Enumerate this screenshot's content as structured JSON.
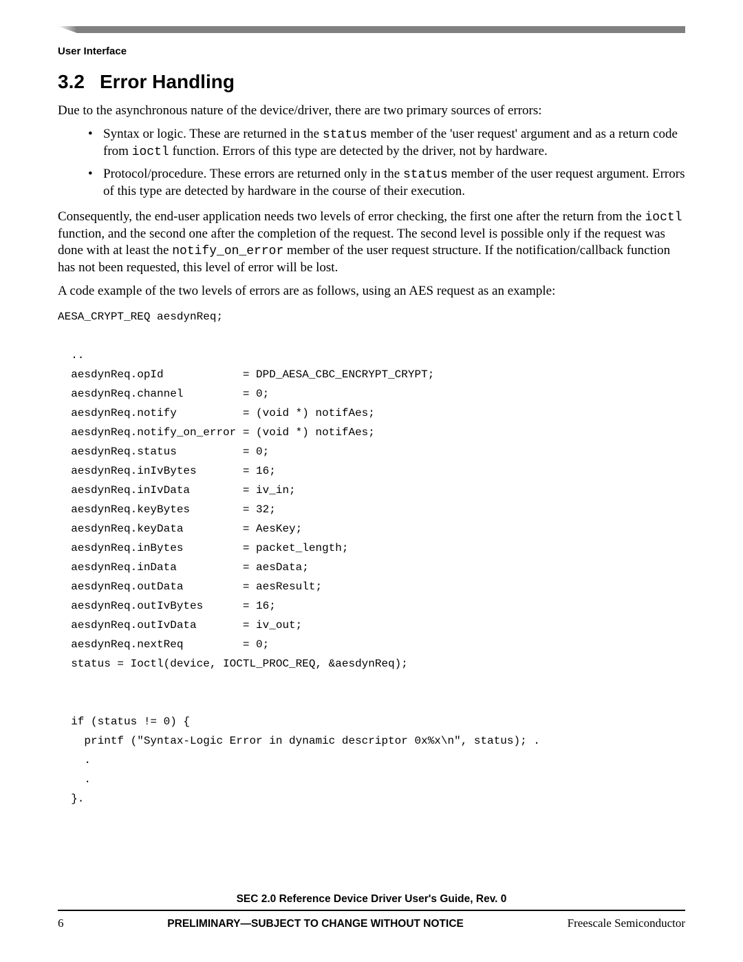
{
  "header": {
    "section_label": "User Interface"
  },
  "heading": {
    "number": "3.2",
    "title": "Error Handling"
  },
  "paragraphs": {
    "p1": "Due to the asynchronous nature of the device/driver, there are two primary sources of errors:",
    "b1_a": "Syntax or logic. These are returned in the ",
    "b1_code1": "status",
    "b1_b": " member of the 'user request' argument and as a return code from ",
    "b1_code2": "ioctl",
    "b1_c": " function. Errors of this type are detected by the driver, not by hardware.",
    "b2_a": "Protocol/procedure. These errors are returned only in the ",
    "b2_code1": "status",
    "b2_b": " member of the user request argument. Errors of this type are detected by hardware in the course of their execution.",
    "p2_a": "Consequently, the end-user application needs two levels of error checking, the first one after the return from the ",
    "p2_code1": "ioctl",
    "p2_b": " function, and the second one after the completion of the request. The second level is possible only if the request was done with at least the ",
    "p2_code2": "notify_on_error",
    "p2_c": " member of the user request structure. If the notification/callback function has not been requested, this level of error will be lost.",
    "p3": "A code example of the two levels of errors are as follows, using an AES request as an example:"
  },
  "code": "AESA_CRYPT_REQ aesdynReq;\n\n  ..\n  aesdynReq.opId            = DPD_AESA_CBC_ENCRYPT_CRYPT;\n  aesdynReq.channel         = 0;\n  aesdynReq.notify          = (void *) notifAes;\n  aesdynReq.notify_on_error = (void *) notifAes;\n  aesdynReq.status          = 0;\n  aesdynReq.inIvBytes       = 16;\n  aesdynReq.inIvData        = iv_in;\n  aesdynReq.keyBytes        = 32;\n  aesdynReq.keyData         = AesKey;\n  aesdynReq.inBytes         = packet_length;\n  aesdynReq.inData          = aesData;\n  aesdynReq.outData         = aesResult;\n  aesdynReq.outIvBytes      = 16;\n  aesdynReq.outIvData       = iv_out;\n  aesdynReq.nextReq         = 0;\n  status = Ioctl(device, IOCTL_PROC_REQ, &aesdynReq);\n\n\n  if (status != 0) {\n    printf (\"Syntax-Logic Error in dynamic descriptor 0x%x\\n\", status); .\n    .\n    .\n  }.",
  "footer": {
    "doc_title": "SEC 2.0 Reference Device Driver User's Guide, Rev. 0",
    "page_number": "6",
    "notice": "PRELIMINARY—SUBJECT TO CHANGE WITHOUT NOTICE",
    "company": "Freescale Semiconductor"
  },
  "colors": {
    "rule_gray": "#808080",
    "text": "#000000",
    "background": "#ffffff"
  },
  "typography": {
    "body_family": "Times New Roman",
    "mono_family": "Courier New",
    "sans_family": "Arial",
    "heading_size_pt": 21,
    "body_size_pt": 14,
    "code_size_pt": 12
  }
}
